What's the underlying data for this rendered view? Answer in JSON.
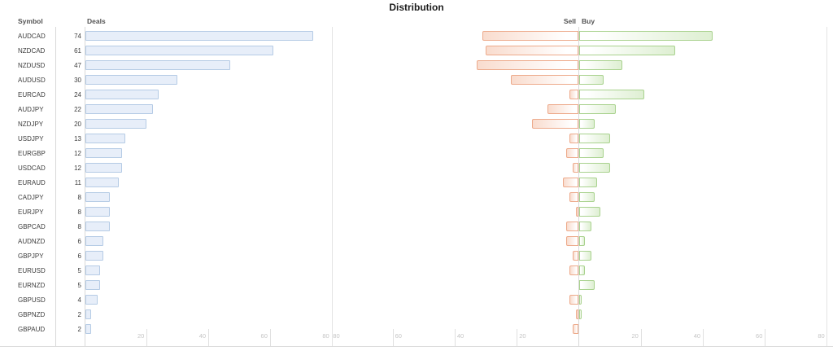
{
  "title": "Distribution",
  "headers": {
    "symbol": "Symbol",
    "deals": "Deals",
    "sell": "Sell",
    "buy": "Buy"
  },
  "colors": {
    "deals_bar_fill": "#e7eef9",
    "deals_bar_border": "#b5cbe5",
    "sell_bar_fill": "#f9dcce",
    "sell_bar_border": "#edaa8b",
    "buy_bar_fill": "#deefd2",
    "buy_bar_border": "#a9d28e",
    "axis_line": "#dcdcdc",
    "tick_label": "#c5c5c5"
  },
  "chart_data": {
    "type": "bar",
    "title": "Distribution",
    "orientation": "horizontal",
    "categories": [
      "AUDCAD",
      "NZDCAD",
      "NZDUSD",
      "AUDUSD",
      "EURCAD",
      "AUDJPY",
      "NZDJPY",
      "USDJPY",
      "EURGBP",
      "USDCAD",
      "EURAUD",
      "CADJPY",
      "EURJPY",
      "GBPCAD",
      "AUDNZD",
      "GBPJPY",
      "EURUSD",
      "EURNZD",
      "GBPUSD",
      "GBPNZD",
      "GBPAUD"
    ],
    "series": [
      {
        "name": "Deals",
        "values": [
          74,
          61,
          47,
          30,
          24,
          22,
          20,
          13,
          12,
          12,
          11,
          8,
          8,
          8,
          6,
          6,
          5,
          5,
          4,
          2,
          2
        ]
      },
      {
        "name": "Sell",
        "values": [
          31,
          30,
          33,
          22,
          3,
          10,
          15,
          3,
          4,
          2,
          5,
          3,
          1,
          4,
          4,
          2,
          3,
          0,
          3,
          1,
          2
        ]
      },
      {
        "name": "Buy",
        "values": [
          43,
          31,
          14,
          8,
          21,
          12,
          5,
          10,
          8,
          10,
          6,
          5,
          7,
          4,
          2,
          4,
          2,
          5,
          1,
          1,
          0
        ]
      }
    ],
    "deals_axis_ticks": [
      20,
      40,
      60,
      80
    ],
    "sell_axis_ticks": [
      20,
      40,
      60,
      80
    ],
    "buy_axis_ticks": [
      20,
      40,
      60,
      80
    ],
    "deals_axis_range": [
      0,
      80
    ],
    "sellbuy_axis_range": [
      80,
      80
    ],
    "grid": "bottom-ticks-only",
    "legend_position": "none"
  },
  "rows": [
    {
      "symbol": "AUDCAD",
      "deals": "74",
      "sell": 31,
      "buy": 43
    },
    {
      "symbol": "NZDCAD",
      "deals": "61",
      "sell": 30,
      "buy": 31
    },
    {
      "symbol": "NZDUSD",
      "deals": "47",
      "sell": 33,
      "buy": 14
    },
    {
      "symbol": "AUDUSD",
      "deals": "30",
      "sell": 22,
      "buy": 8
    },
    {
      "symbol": "EURCAD",
      "deals": "24",
      "sell": 3,
      "buy": 21
    },
    {
      "symbol": "AUDJPY",
      "deals": "22",
      "sell": 10,
      "buy": 12
    },
    {
      "symbol": "NZDJPY",
      "deals": "20",
      "sell": 15,
      "buy": 5
    },
    {
      "symbol": "USDJPY",
      "deals": "13",
      "sell": 3,
      "buy": 10
    },
    {
      "symbol": "EURGBP",
      "deals": "12",
      "sell": 4,
      "buy": 8
    },
    {
      "symbol": "USDCAD",
      "deals": "12",
      "sell": 2,
      "buy": 10
    },
    {
      "symbol": "EURAUD",
      "deals": "11",
      "sell": 5,
      "buy": 6
    },
    {
      "symbol": "CADJPY",
      "deals": "8",
      "sell": 3,
      "buy": 5
    },
    {
      "symbol": "EURJPY",
      "deals": "8",
      "sell": 1,
      "buy": 7
    },
    {
      "symbol": "GBPCAD",
      "deals": "8",
      "sell": 4,
      "buy": 4
    },
    {
      "symbol": "AUDNZD",
      "deals": "6",
      "sell": 4,
      "buy": 2
    },
    {
      "symbol": "GBPJPY",
      "deals": "6",
      "sell": 2,
      "buy": 4
    },
    {
      "symbol": "EURUSD",
      "deals": "5",
      "sell": 3,
      "buy": 2
    },
    {
      "symbol": "EURNZD",
      "deals": "5",
      "sell": 0,
      "buy": 5
    },
    {
      "symbol": "GBPUSD",
      "deals": "4",
      "sell": 3,
      "buy": 1
    },
    {
      "symbol": "GBPNZD",
      "deals": "2",
      "sell": 1,
      "buy": 1
    },
    {
      "symbol": "GBPAUD",
      "deals": "2",
      "sell": 2,
      "buy": 0
    }
  ]
}
